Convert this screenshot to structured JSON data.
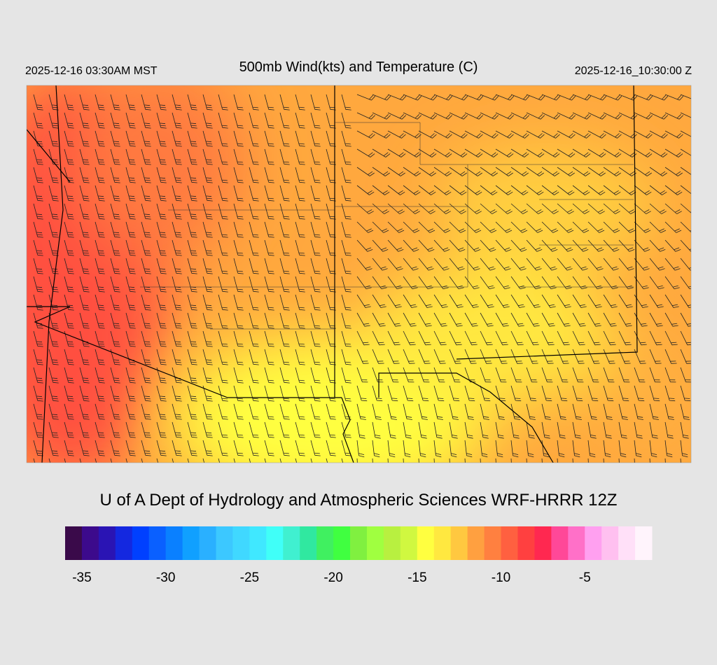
{
  "header": {
    "left_time": "2025-12-16 03:30AM MST",
    "title": "500mb Wind(kts) and Temperature (C)",
    "right_time": "2025-12-16_10:30:00 Z"
  },
  "footer": {
    "credit": "U of A Dept of Hydrology and Atmospheric Sciences WRF-HRRR 12Z"
  },
  "colorbar": {
    "range": [
      -36,
      -1
    ],
    "ticks": [
      -35,
      -30,
      -25,
      -20,
      -15,
      -10,
      -5
    ],
    "colors": [
      "#3a0a4a",
      "#3c0a8c",
      "#2a14b4",
      "#1428e0",
      "#0040ff",
      "#0a60ff",
      "#0a80ff",
      "#10a0ff",
      "#2ab0ff",
      "#3cc8ff",
      "#40d8ff",
      "#40e8ff",
      "#40fff8",
      "#40f0d0",
      "#30e8a0",
      "#40f060",
      "#40ff40",
      "#80f040",
      "#a0ff40",
      "#b8f040",
      "#d0f840",
      "#ffff40",
      "#ffe840",
      "#ffc840",
      "#ffa040",
      "#ff8040",
      "#ff6040",
      "#ff4040",
      "#ff2850",
      "#ff4898",
      "#ff70c8",
      "#ffa0f0",
      "#ffc0f0",
      "#ffe0f8",
      "#fff4fc"
    ]
  }
}
